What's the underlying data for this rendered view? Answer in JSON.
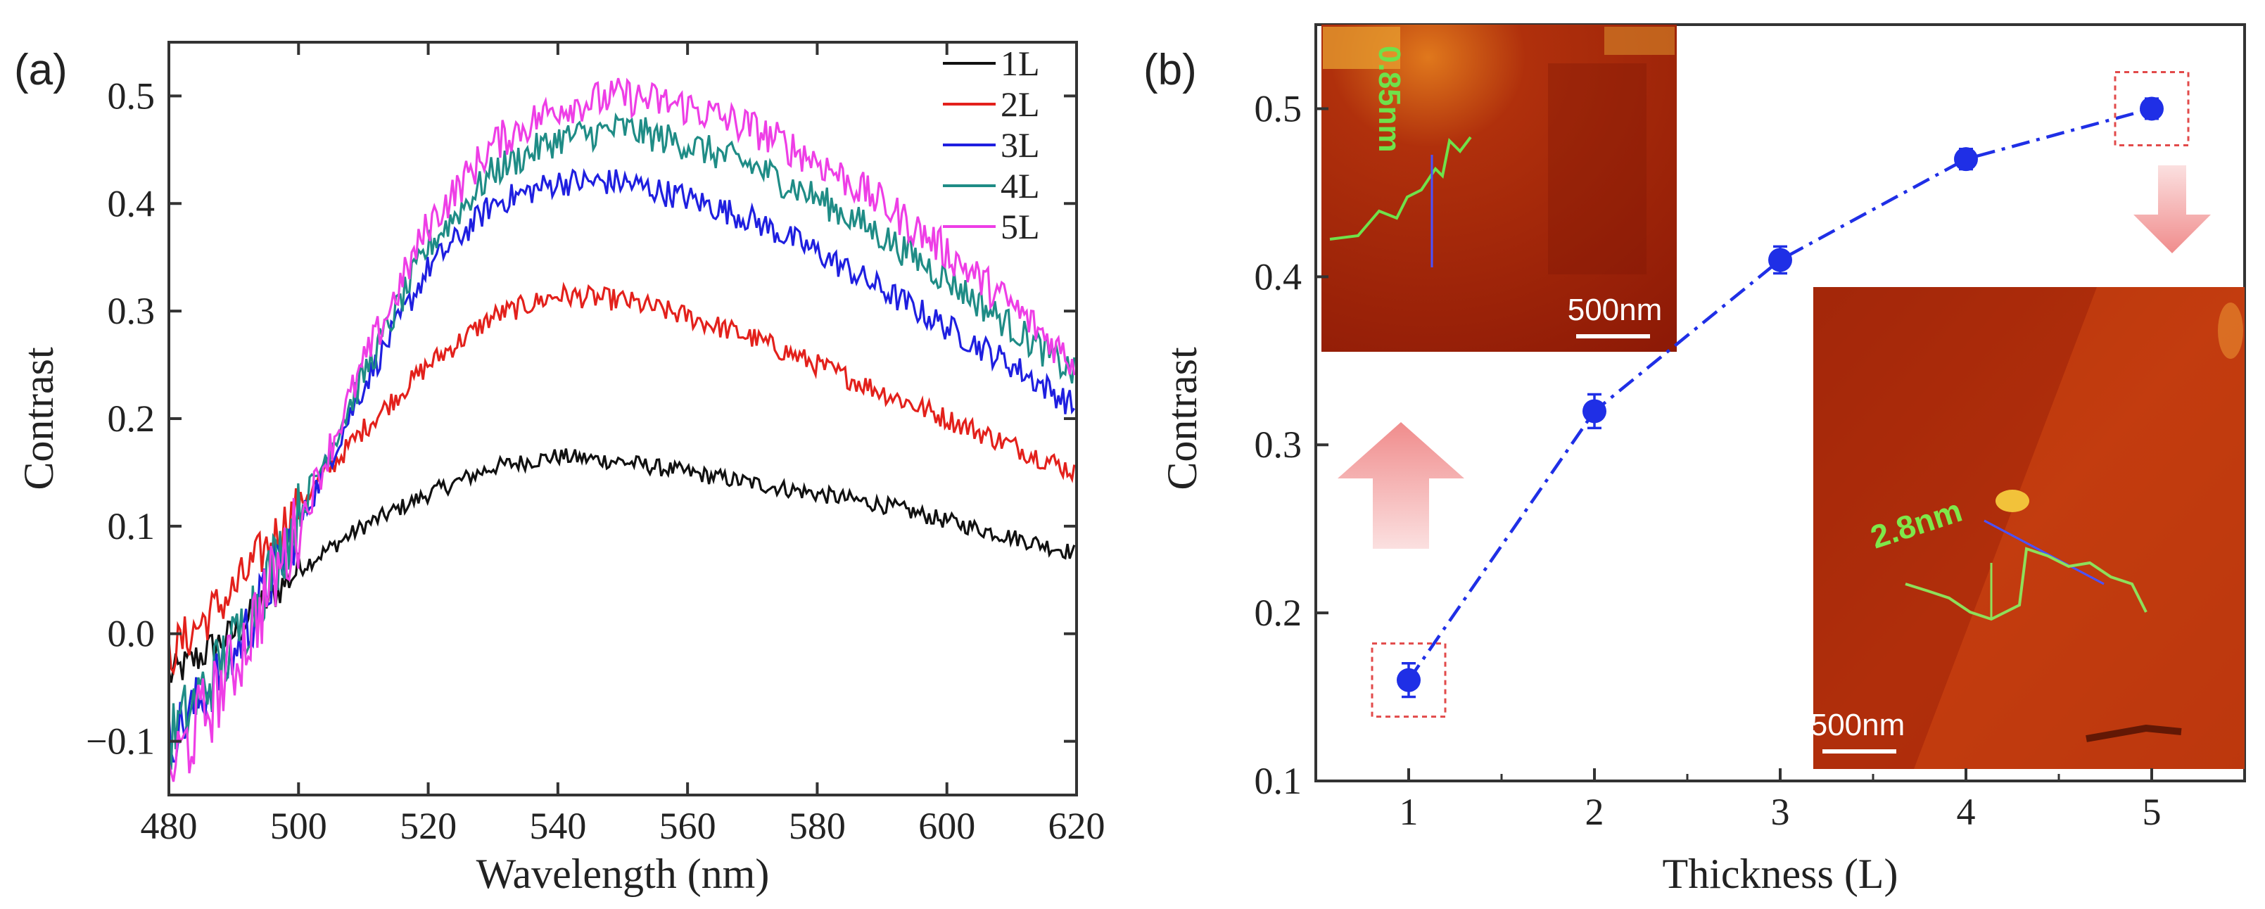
{
  "figure": {
    "panel_a_label": "(a)",
    "panel_b_label": "(b)",
    "colors": {
      "1L": "#111111",
      "2L": "#e3211c",
      "3L": "#1f1fe0",
      "4L": "#1f8c86",
      "5L": "#ee3ee6",
      "panel_b_series": "#1f2fe6",
      "highlight_box": "#e24a4a",
      "arrow": "#f2a3a3"
    }
  },
  "chart_data": [
    {
      "type": "line",
      "panel": "(a)",
      "title": "",
      "xlabel": "Wavelength (nm)",
      "ylabel": "Contrast",
      "xlim": [
        480,
        620
      ],
      "ylim": [
        -0.15,
        0.55
      ],
      "xticks": [
        480,
        500,
        520,
        540,
        560,
        580,
        600,
        620
      ],
      "xtick_labels": [
        "480",
        "500",
        "520",
        "540",
        "560",
        "580",
        "600",
        "620"
      ],
      "yticks": [
        -0.1,
        0.0,
        0.1,
        0.2,
        0.3,
        0.4,
        0.5
      ],
      "ytick_labels": [
        "−0.1",
        "0.0",
        "0.1",
        "0.2",
        "0.3",
        "0.4",
        "0.5"
      ],
      "legend_position": "top-right",
      "x": [
        480,
        490,
        500,
        510,
        520,
        530,
        540,
        550,
        560,
        570,
        580,
        590,
        600,
        610,
        620
      ],
      "series": [
        {
          "name": "1L",
          "values": [
            -0.04,
            0.0,
            0.06,
            0.1,
            0.13,
            0.155,
            0.165,
            0.16,
            0.15,
            0.14,
            0.13,
            0.12,
            0.105,
            0.09,
            0.075
          ]
        },
        {
          "name": "2L",
          "values": [
            -0.02,
            0.04,
            0.12,
            0.19,
            0.25,
            0.295,
            0.315,
            0.31,
            0.295,
            0.275,
            0.25,
            0.225,
            0.2,
            0.175,
            0.15
          ]
        },
        {
          "name": "3L",
          "values": [
            -0.1,
            -0.02,
            0.1,
            0.23,
            0.34,
            0.4,
            0.42,
            0.42,
            0.405,
            0.385,
            0.355,
            0.32,
            0.285,
            0.25,
            0.21
          ]
        },
        {
          "name": "4L",
          "values": [
            -0.1,
            -0.01,
            0.11,
            0.24,
            0.36,
            0.43,
            0.46,
            0.47,
            0.455,
            0.435,
            0.405,
            0.37,
            0.33,
            0.285,
            0.24
          ]
        },
        {
          "name": "5L",
          "values": [
            -0.13,
            -0.03,
            0.1,
            0.25,
            0.38,
            0.455,
            0.49,
            0.5,
            0.49,
            0.47,
            0.44,
            0.4,
            0.355,
            0.305,
            0.25
          ]
        }
      ]
    },
    {
      "type": "scatter",
      "panel": "(b)",
      "title": "",
      "xlabel": "Thickness (L)",
      "ylabel": "Contrast",
      "xlim": [
        0.5,
        5.5
      ],
      "ylim": [
        0.1,
        0.55
      ],
      "xticks": [
        1,
        2,
        3,
        4,
        5
      ],
      "xtick_labels": [
        "1",
        "2",
        "3",
        "4",
        "5"
      ],
      "yticks": [
        0.1,
        0.2,
        0.3,
        0.4,
        0.5
      ],
      "ytick_labels": [
        "0.1",
        "0.2",
        "0.3",
        "0.4",
        "0.5"
      ],
      "line_style": "dash-dot",
      "series": [
        {
          "name": "Contrast",
          "x": [
            1,
            2,
            3,
            4,
            5
          ],
          "values": [
            0.16,
            0.32,
            0.41,
            0.47,
            0.5
          ],
          "errors": [
            0.01,
            0.01,
            0.008,
            0.006,
            0.006
          ]
        }
      ],
      "highlighted_points": [
        1,
        5
      ],
      "annotations": {
        "inset_top_scale": "500nm",
        "inset_top_height": "0.85nm",
        "inset_bottom_scale": "500nm",
        "inset_bottom_height": "2.8nm"
      }
    }
  ]
}
